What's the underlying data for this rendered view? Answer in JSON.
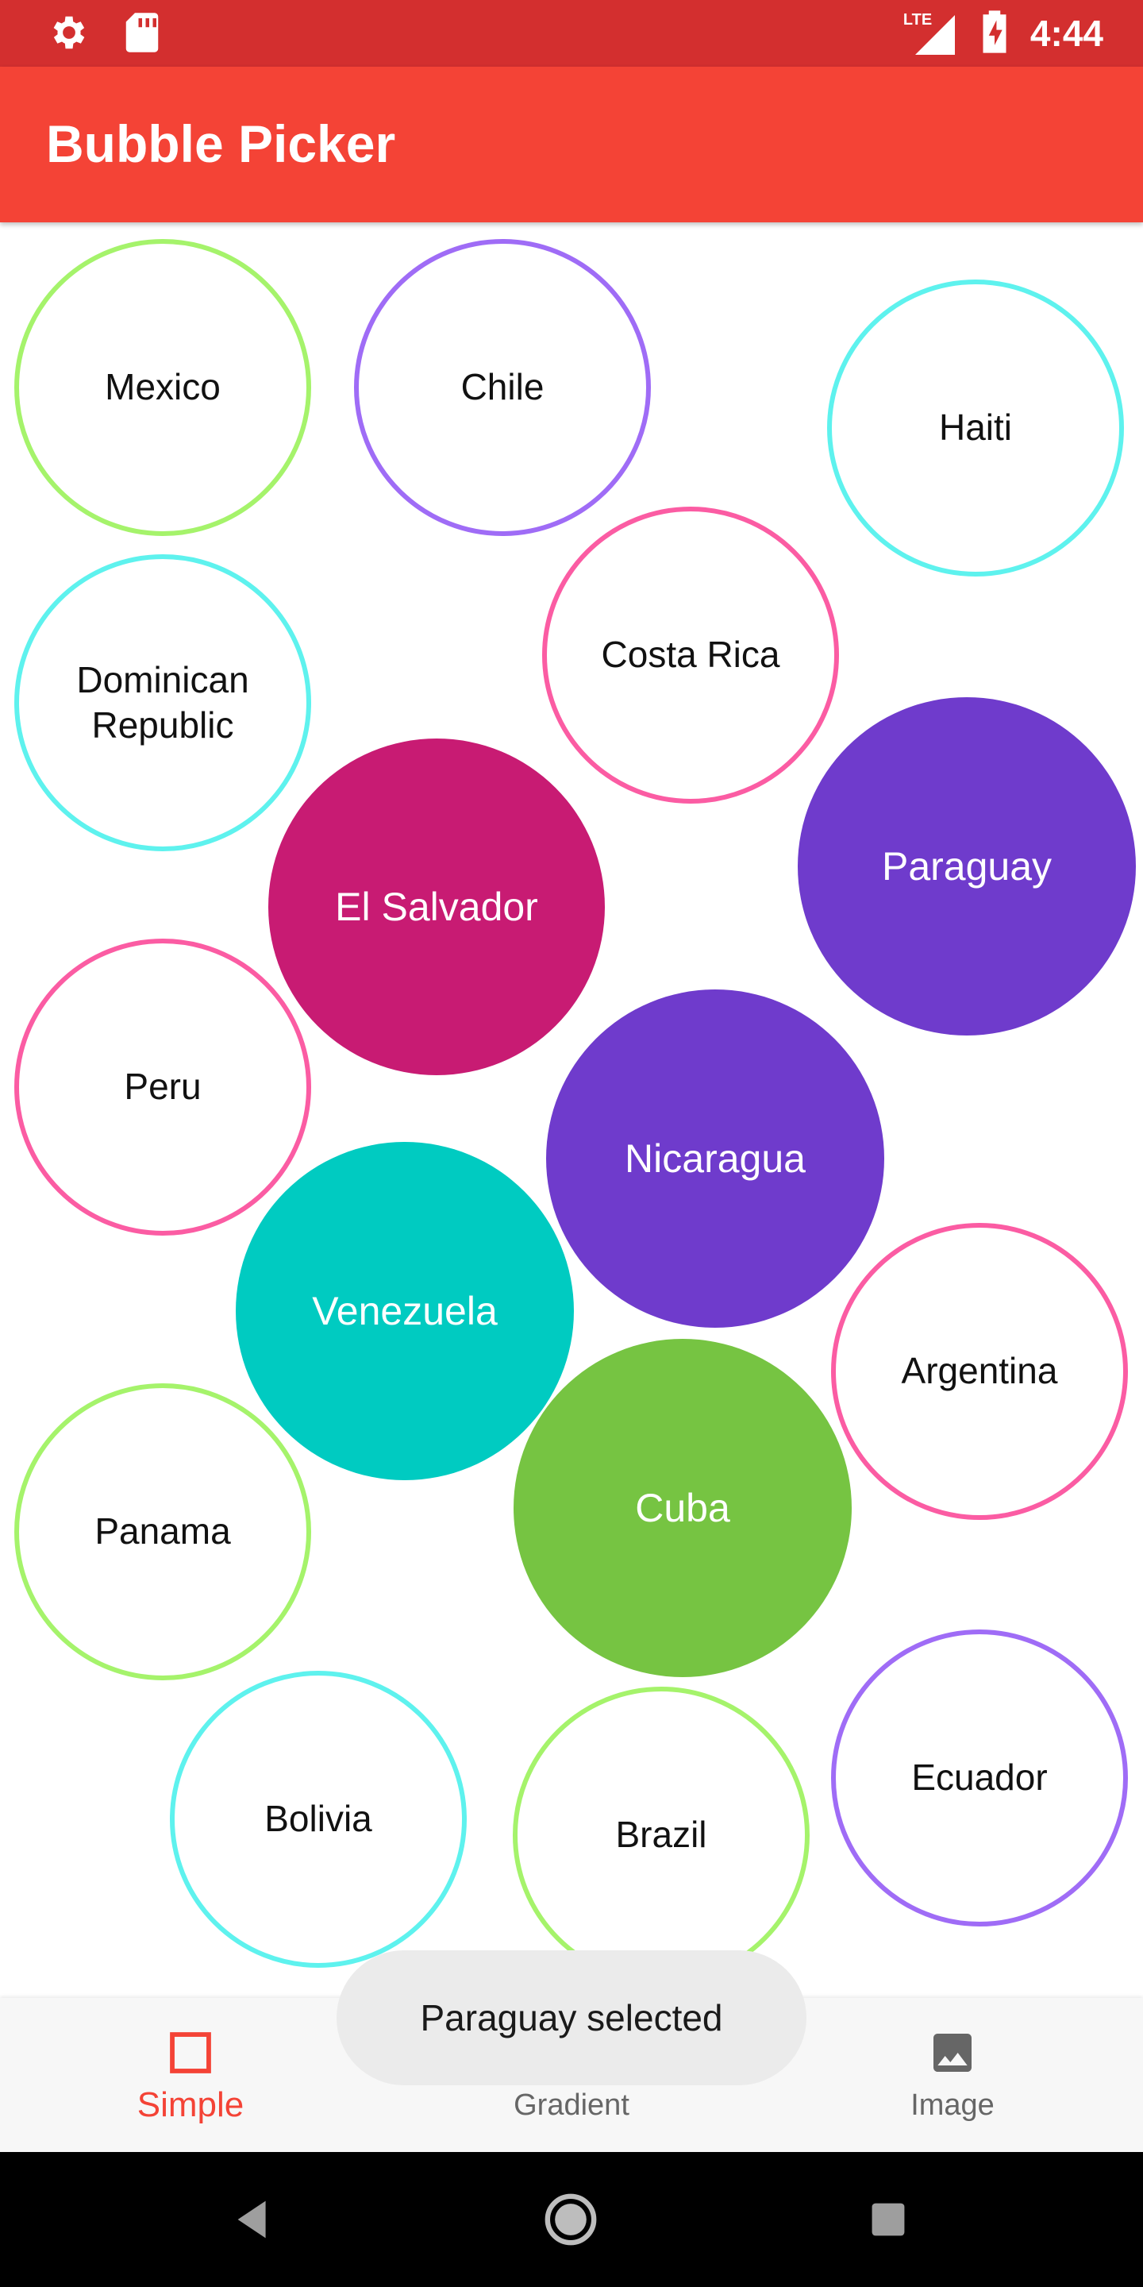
{
  "status_bar": {
    "time": "4:44",
    "network": "LTE",
    "left_icons": [
      "settings-icon",
      "sd-card-icon"
    ],
    "right_icons": [
      "signal-icon",
      "battery-charging-icon"
    ]
  },
  "app_bar": {
    "title": "Bubble Picker",
    "color": "#f44336"
  },
  "bubbles": [
    {
      "label": "Mexico",
      "style": "outline",
      "color": "#a5f36b"
    },
    {
      "label": "Chile",
      "style": "outline",
      "color": "#9f6cf6"
    },
    {
      "label": "Haiti",
      "style": "outline",
      "color": "#5ef2ee"
    },
    {
      "label": "Costa Rica",
      "style": "outline",
      "color": "#fb5ca3"
    },
    {
      "label": "Dominican\nRepublic",
      "style": "outline",
      "color": "#5ef2ee"
    },
    {
      "label": "El Salvador",
      "style": "filled",
      "color": "#c81b73"
    },
    {
      "label": "Paraguay",
      "style": "filled",
      "color": "#6f3bcc"
    },
    {
      "label": "Peru",
      "style": "outline",
      "color": "#fb5ca3"
    },
    {
      "label": "Nicaragua",
      "style": "filled",
      "color": "#6f3bcc"
    },
    {
      "label": "Venezuela",
      "style": "filled",
      "color": "#00cbc1"
    },
    {
      "label": "Argentina",
      "style": "outline",
      "color": "#fb5ca3"
    },
    {
      "label": "Panama",
      "style": "outline",
      "color": "#a5f36b"
    },
    {
      "label": "Cuba",
      "style": "filled",
      "color": "#76c442"
    },
    {
      "label": "Bolivia",
      "style": "outline",
      "color": "#5ef2ee"
    },
    {
      "label": "Brazil",
      "style": "outline",
      "color": "#a5f36b"
    },
    {
      "label": "Ecuador",
      "style": "outline",
      "color": "#9f6cf6"
    }
  ],
  "bottom_nav": {
    "items": [
      {
        "label": "Simple",
        "icon": "square-outline-icon",
        "active": true
      },
      {
        "label": "Gradient",
        "icon": "gradient-icon",
        "active": false
      },
      {
        "label": "Image",
        "icon": "image-icon",
        "active": false
      }
    ]
  },
  "toast": {
    "text": "Paraguay selected"
  },
  "system_nav": {
    "buttons": [
      "back-icon",
      "home-icon",
      "recents-icon"
    ]
  }
}
